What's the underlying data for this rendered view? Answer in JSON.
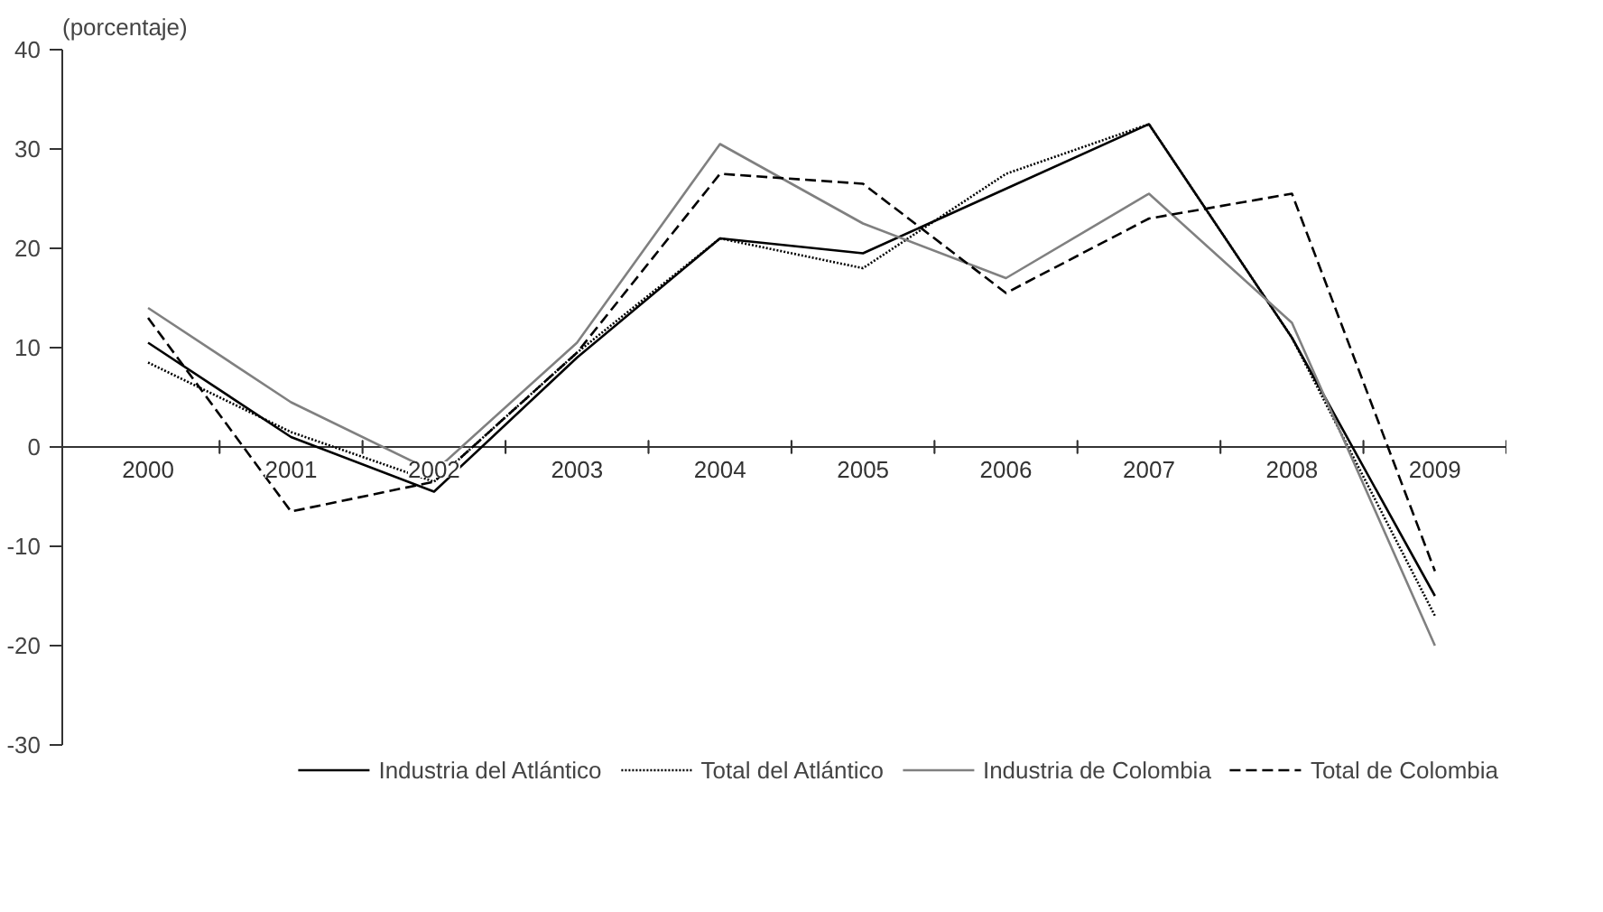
{
  "chart_data": {
    "type": "line",
    "ylabel": "(porcentaje)",
    "categories": [
      "2000",
      "2001",
      "2002",
      "2003",
      "2004",
      "2005",
      "2006",
      "2007",
      "2008",
      "2009"
    ],
    "ylim": [
      -30,
      40
    ],
    "yticks": [
      -30,
      -20,
      -10,
      0,
      10,
      20,
      30,
      40
    ],
    "legend": "bottom",
    "marker": "none",
    "series": [
      {
        "name": "Industria del Atlántico",
        "color": "#000000",
        "line_style": "solid",
        "values": [
          10.5,
          1,
          -4.5,
          9,
          21,
          19.5,
          26,
          32.5,
          11,
          -15
        ]
      },
      {
        "name": "Total del Atlántico",
        "color": "#000000",
        "line_style": "dotted",
        "values": [
          8.5,
          1.5,
          -3.5,
          9.5,
          21,
          18,
          27.5,
          32.5,
          11,
          -17
        ]
      },
      {
        "name": "Industria de Colombia",
        "color": "#808080",
        "line_style": "solid",
        "values": [
          14,
          4.5,
          -2.5,
          10.5,
          30.5,
          22.5,
          17,
          25.5,
          12.5,
          -20
        ]
      },
      {
        "name": "Total de Colombia",
        "color": "#000000",
        "line_style": "dashed",
        "values": [
          13,
          -6.5,
          -3.5,
          9.5,
          27.5,
          26.5,
          15.5,
          23,
          25.5,
          -12.5
        ]
      }
    ]
  }
}
